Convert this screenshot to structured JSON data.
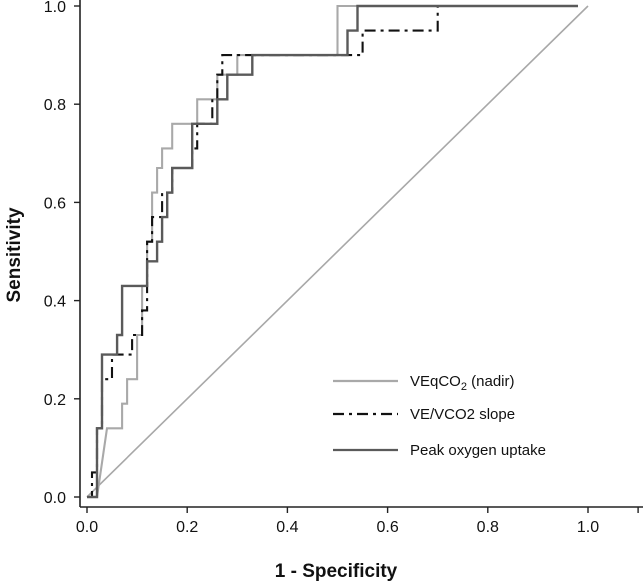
{
  "chart_data": {
    "type": "line",
    "title": "",
    "xlabel": "1 - Specificity",
    "ylabel": "Sensitivity",
    "xlim": [
      0,
      1.1
    ],
    "ylim": [
      0,
      1
    ],
    "x_ticks": [
      "0.0",
      "0.2",
      "0.4",
      "0.6",
      "0.8",
      "1.0"
    ],
    "y_ticks": [
      "0.0",
      "0.2",
      "0.4",
      "0.6",
      "0.8",
      "1.0"
    ],
    "grid": false,
    "legend_position": "bottom-right",
    "reference_line": {
      "x": [
        0,
        1
      ],
      "y": [
        0,
        1
      ],
      "color": "#a8a8a8"
    },
    "series": [
      {
        "name": "VEqCO₂ (nadir)",
        "legend_main": "VEqCO",
        "legend_sub": "2",
        "legend_tail": " (nadir)",
        "color": "#a9a9a9",
        "dash": "solid",
        "x": [
          0.0,
          0.02,
          0.04,
          0.04,
          0.07,
          0.07,
          0.08,
          0.08,
          0.1,
          0.1,
          0.11,
          0.11,
          0.12,
          0.12,
          0.13,
          0.13,
          0.14,
          0.14,
          0.15,
          0.15,
          0.17,
          0.17,
          0.19,
          0.19,
          0.22,
          0.22,
          0.26,
          0.26,
          0.3,
          0.3,
          0.34,
          0.34,
          0.5,
          0.5,
          0.55,
          0.55,
          0.98,
          0.98
        ],
        "y": [
          0.0,
          0.0,
          0.14,
          0.14,
          0.14,
          0.19,
          0.19,
          0.24,
          0.24,
          0.33,
          0.33,
          0.43,
          0.43,
          0.52,
          0.52,
          0.62,
          0.62,
          0.67,
          0.67,
          0.71,
          0.71,
          0.76,
          0.76,
          0.76,
          0.76,
          0.81,
          0.81,
          0.86,
          0.86,
          0.9,
          0.9,
          0.9,
          0.9,
          1.0,
          1.0,
          1.0,
          1.0,
          1.0
        ]
      },
      {
        "name": "VE/VCO2 slope",
        "legend_main": "VE/VCO2 slope",
        "legend_sub": "",
        "legend_tail": "",
        "color": "#111111",
        "dash": "dashdot",
        "x": [
          0.0,
          0.01,
          0.01,
          0.02,
          0.02,
          0.03,
          0.03,
          0.05,
          0.05,
          0.09,
          0.09,
          0.11,
          0.11,
          0.12,
          0.12,
          0.13,
          0.13,
          0.15,
          0.15,
          0.17,
          0.17,
          0.19,
          0.19,
          0.21,
          0.21,
          0.22,
          0.22,
          0.25,
          0.25,
          0.26,
          0.26,
          0.27,
          0.27,
          0.55,
          0.55,
          0.58,
          0.58,
          0.7,
          0.7
        ],
        "y": [
          0.0,
          0.0,
          0.05,
          0.05,
          0.14,
          0.14,
          0.24,
          0.24,
          0.29,
          0.29,
          0.33,
          0.33,
          0.38,
          0.38,
          0.52,
          0.52,
          0.57,
          0.57,
          0.62,
          0.62,
          0.67,
          0.67,
          0.67,
          0.67,
          0.71,
          0.71,
          0.76,
          0.76,
          0.81,
          0.81,
          0.86,
          0.86,
          0.9,
          0.9,
          0.95,
          0.95,
          0.95,
          0.95,
          1.0
        ]
      },
      {
        "name": "Peak oxygen uptake",
        "legend_main": "Peak oxygen uptake",
        "legend_sub": "",
        "legend_tail": "",
        "color": "#5a5a5a",
        "dash": "solid",
        "x": [
          0.0,
          0.01,
          0.02,
          0.02,
          0.03,
          0.03,
          0.06,
          0.06,
          0.07,
          0.07,
          0.09,
          0.09,
          0.12,
          0.12,
          0.14,
          0.14,
          0.15,
          0.15,
          0.16,
          0.16,
          0.17,
          0.17,
          0.19,
          0.19,
          0.21,
          0.21,
          0.26,
          0.26,
          0.28,
          0.28,
          0.33,
          0.33,
          0.39,
          0.39,
          0.52,
          0.52,
          0.54,
          0.54,
          0.98,
          0.98
        ],
        "y": [
          0.0,
          0.0,
          0.0,
          0.14,
          0.14,
          0.29,
          0.29,
          0.33,
          0.33,
          0.43,
          0.43,
          0.43,
          0.43,
          0.48,
          0.48,
          0.52,
          0.52,
          0.57,
          0.57,
          0.62,
          0.62,
          0.67,
          0.67,
          0.67,
          0.67,
          0.76,
          0.76,
          0.81,
          0.81,
          0.86,
          0.86,
          0.9,
          0.9,
          0.9,
          0.9,
          0.95,
          0.95,
          1.0,
          1.0,
          1.0
        ]
      }
    ]
  }
}
